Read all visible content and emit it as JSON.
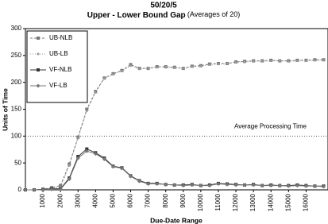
{
  "chart_data": {
    "type": "line",
    "title": "50/20/5",
    "subtitle": "Upper - Lower Bound Gap",
    "subtitle_note": "(Averages of 20)",
    "x_label": "Due-Date Range",
    "y_label": "Units of Time",
    "x": [
      0,
      500,
      1000,
      1500,
      2000,
      2500,
      3000,
      3500,
      4000,
      4500,
      5000,
      5500,
      6000,
      6500,
      7000,
      7500,
      8000,
      8500,
      9000,
      9500,
      10000,
      10500,
      11000,
      11500,
      12000,
      12500,
      13000,
      13500,
      14000,
      14500,
      15000,
      15500,
      16000,
      16500,
      17000
    ],
    "series": [
      {
        "name": "UB-NLB",
        "color": "#777777",
        "dash": "3,2",
        "marker": "square",
        "values": [
          0,
          0,
          1,
          4,
          8,
          48,
          98,
          150,
          183,
          208,
          216,
          222,
          233,
          226,
          226,
          229,
          229,
          228,
          226,
          230,
          231,
          234,
          235,
          235,
          238,
          239,
          240,
          240,
          241,
          240,
          240,
          241,
          241,
          242,
          242
        ]
      },
      {
        "name": "UB-LB",
        "color": "#999999",
        "dash": "1,2",
        "marker": "dot",
        "values": [
          0,
          0,
          1,
          3,
          5,
          45,
          96,
          147,
          181,
          207,
          215,
          221,
          231,
          225,
          226,
          228,
          229,
          227,
          226,
          229,
          230,
          233,
          234,
          235,
          237,
          238,
          239,
          239,
          240,
          240,
          239,
          240,
          240,
          241,
          241
        ]
      },
      {
        "name": "VF-NLB",
        "color": "#333333",
        "dash": "none",
        "marker": "square",
        "values": [
          0,
          0,
          1,
          2,
          2,
          22,
          62,
          76,
          69,
          59,
          44,
          41,
          26,
          17,
          12,
          12,
          10,
          9,
          9,
          10,
          8,
          9,
          12,
          11,
          10,
          9,
          10,
          8,
          9,
          8,
          8,
          9,
          8,
          7,
          7
        ]
      },
      {
        "name": "VF-LB",
        "color": "#777777",
        "dash": "none",
        "marker": "diamond",
        "values": [
          0,
          0,
          0,
          1,
          1,
          20,
          59,
          72,
          67,
          57,
          43,
          40,
          25,
          16,
          11,
          11,
          10,
          9,
          8,
          9,
          8,
          8,
          11,
          10,
          9,
          9,
          9,
          8,
          8,
          8,
          7,
          8,
          7,
          7,
          6
        ]
      }
    ],
    "reference_line": {
      "value": 100,
      "label": "Average Processing Time"
    },
    "xlim": [
      0,
      17250
    ],
    "ylim": [
      0,
      300
    ],
    "xticks": [
      1000,
      2000,
      3000,
      4000,
      5000,
      6000,
      7000,
      8000,
      9000,
      10000,
      11000,
      12000,
      13000,
      14000,
      15000,
      16000
    ],
    "yticks": [
      0,
      50,
      100,
      150,
      200,
      250,
      300
    ],
    "legend": "top-left"
  }
}
